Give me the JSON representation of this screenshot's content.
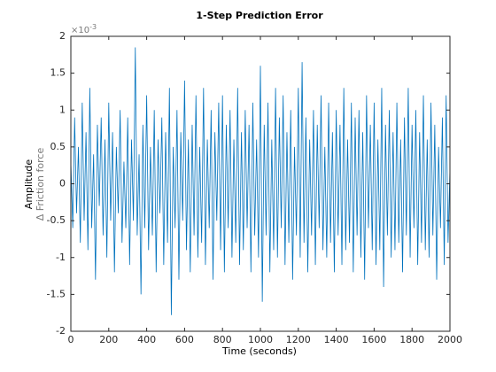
{
  "chart_data": {
    "type": "line",
    "title": "1-Step Prediction Error",
    "xlabel": "Time (seconds)",
    "ylabel": "Amplitude",
    "ylabel_sub": "Δ Friction force",
    "y_multiplier": {
      "base": "×10",
      "exponent": "-3"
    },
    "color": "#0072bd",
    "xlim": [
      0,
      2000
    ],
    "xticks": [
      0,
      200,
      400,
      600,
      800,
      1000,
      1200,
      1400,
      1600,
      1800,
      2000
    ],
    "ylim": [
      -2,
      2
    ],
    "yticks": [
      -2,
      -1.5,
      -1,
      -0.5,
      0,
      0.5,
      1,
      1.5,
      2
    ],
    "grid": false,
    "x": [
      0,
      10,
      20,
      30,
      40,
      50,
      60,
      70,
      80,
      90,
      100,
      110,
      120,
      130,
      140,
      150,
      160,
      170,
      180,
      190,
      200,
      210,
      220,
      230,
      240,
      250,
      260,
      270,
      280,
      290,
      300,
      310,
      320,
      330,
      340,
      350,
      360,
      370,
      380,
      390,
      400,
      410,
      420,
      430,
      440,
      450,
      460,
      470,
      480,
      490,
      500,
      510,
      520,
      530,
      540,
      550,
      560,
      570,
      580,
      590,
      600,
      610,
      620,
      630,
      640,
      650,
      660,
      670,
      680,
      690,
      700,
      710,
      720,
      730,
      740,
      750,
      760,
      770,
      780,
      790,
      800,
      810,
      820,
      830,
      840,
      850,
      860,
      870,
      880,
      890,
      900,
      910,
      920,
      930,
      940,
      950,
      960,
      970,
      980,
      990,
      1000,
      1010,
      1020,
      1030,
      1040,
      1050,
      1060,
      1070,
      1080,
      1090,
      1100,
      1110,
      1120,
      1130,
      1140,
      1150,
      1160,
      1170,
      1180,
      1190,
      1200,
      1210,
      1220,
      1230,
      1240,
      1250,
      1260,
      1270,
      1280,
      1290,
      1300,
      1310,
      1320,
      1330,
      1340,
      1350,
      1360,
      1370,
      1380,
      1390,
      1400,
      1410,
      1420,
      1430,
      1440,
      1450,
      1460,
      1470,
      1480,
      1490,
      1500,
      1510,
      1520,
      1530,
      1540,
      1550,
      1560,
      1570,
      1580,
      1590,
      1600,
      1610,
      1620,
      1630,
      1640,
      1650,
      1660,
      1670,
      1680,
      1690,
      1700,
      1710,
      1720,
      1730,
      1740,
      1750,
      1760,
      1770,
      1780,
      1790,
      1800,
      1810,
      1820,
      1830,
      1840,
      1850,
      1860,
      1870,
      1880,
      1890,
      1900,
      1910,
      1920,
      1930,
      1940,
      1950,
      1960,
      1970,
      1980,
      1990,
      2000
    ],
    "values": [
      0.3,
      -0.6,
      0.9,
      -0.4,
      0.5,
      -0.8,
      1.1,
      -0.5,
      0.7,
      -0.9,
      1.3,
      -0.6,
      0.4,
      -1.3,
      0.8,
      -0.3,
      0.9,
      -0.7,
      0.6,
      -1.0,
      1.1,
      -0.5,
      0.7,
      -1.2,
      0.5,
      -0.4,
      1.0,
      -0.8,
      0.3,
      -0.6,
      0.9,
      -1.1,
      0.6,
      -0.5,
      1.85,
      -0.7,
      0.4,
      -1.5,
      0.8,
      -0.6,
      1.2,
      -0.9,
      0.5,
      -0.7,
      1.0,
      -1.2,
      0.6,
      -0.4,
      0.9,
      -1.1,
      0.7,
      -0.8,
      1.3,
      -1.78,
      0.5,
      -0.6,
      1.0,
      -1.3,
      0.7,
      -0.5,
      1.4,
      -0.9,
      0.6,
      -1.2,
      0.8,
      -0.7,
      1.2,
      -1.0,
      0.5,
      -0.8,
      1.3,
      -1.1,
      0.6,
      -0.6,
      1.0,
      -1.3,
      0.7,
      -0.5,
      1.1,
      -0.9,
      1.2,
      -1.2,
      0.8,
      -0.6,
      1.0,
      -1.0,
      0.6,
      -0.8,
      1.3,
      -1.1,
      0.7,
      -0.9,
      1.0,
      -0.6,
      0.8,
      -1.2,
      1.1,
      -0.7,
      0.6,
      -1.0,
      1.6,
      -1.6,
      0.8,
      -0.7,
      1.1,
      -1.2,
      0.6,
      -0.9,
      1.3,
      -1.0,
      0.9,
      -0.6,
      1.2,
      -1.1,
      0.7,
      -0.8,
      1.0,
      -1.3,
      0.5,
      -0.7,
      1.3,
      -1.0,
      1.65,
      -0.8,
      0.9,
      -1.2,
      0.6,
      -0.7,
      1.0,
      -1.1,
      0.8,
      -0.6,
      1.2,
      -0.9,
      0.5,
      -1.0,
      1.1,
      -0.8,
      0.7,
      -1.2,
      1.0,
      -0.7,
      0.8,
      -1.1,
      1.3,
      -0.9,
      0.6,
      -0.8,
      1.1,
      -1.2,
      0.9,
      -0.7,
      1.0,
      -1.0,
      0.7,
      -1.3,
      1.2,
      -0.6,
      0.8,
      -0.9,
      1.1,
      -1.1,
      0.6,
      -0.9,
      1.3,
      -1.4,
      0.8,
      -0.7,
      1.0,
      -1.0,
      0.7,
      -0.9,
      1.1,
      -0.8,
      0.6,
      -1.2,
      0.9,
      -0.7,
      1.3,
      -1.0,
      0.8,
      -0.6,
      1.0,
      -1.1,
      0.7,
      -0.8,
      1.2,
      -0.9,
      0.6,
      -1.0,
      1.1,
      -0.7,
      0.8,
      -1.3,
      0.5,
      -0.6,
      0.9,
      -1.1,
      1.2,
      -0.8,
      0.2
    ]
  }
}
